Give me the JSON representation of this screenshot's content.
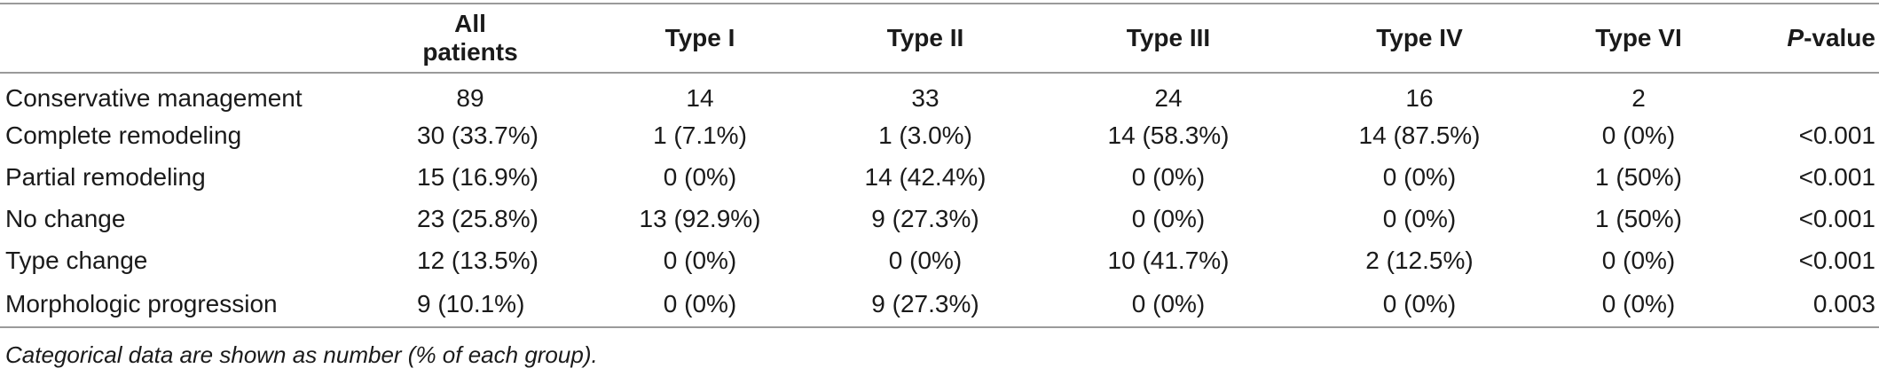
{
  "table": {
    "headers": {
      "label": "",
      "all": "All patients",
      "t1": "Type I",
      "t2": "Type II",
      "t3": "Type III",
      "t4": "Type IV",
      "t6": "Type VI",
      "p_letter": "P",
      "p_suffix": "-value"
    },
    "rows": [
      {
        "label": "Conservative management",
        "all": "89",
        "t1": "14",
        "t2": "33",
        "t3": "24",
        "t4": "16",
        "t6": "2",
        "p": ""
      },
      {
        "label": "Complete remodeling",
        "all": "30 (33.7%)",
        "t1": "1 (7.1%)",
        "t2": "1 (3.0%)",
        "t3": "14 (58.3%)",
        "t4": "14 (87.5%)",
        "t6": "0 (0%)",
        "p": "<0.001"
      },
      {
        "label": "Partial remodeling",
        "all": "15 (16.9%)",
        "t1": "0 (0%)",
        "t2": "14 (42.4%)",
        "t3": "0 (0%)",
        "t4": "0 (0%)",
        "t6": "1 (50%)",
        "p": "<0.001"
      },
      {
        "label": "No change",
        "all": "23 (25.8%)",
        "t1": "13 (92.9%)",
        "t2": "9 (27.3%)",
        "t3": "0 (0%)",
        "t4": "0 (0%)",
        "t6": "1 (50%)",
        "p": "<0.001"
      },
      {
        "label": "Type change",
        "all": "12 (13.5%)",
        "t1": "0 (0%)",
        "t2": "0 (0%)",
        "t3": "10 (41.7%)",
        "t4": "2 (12.5%)",
        "t6": "0 (0%)",
        "p": "<0.001"
      },
      {
        "label": "Morphologic progression",
        "all": "9 (10.1%)",
        "t1": "0 (0%)",
        "t2": "9 (27.3%)",
        "t3": "0 (0%)",
        "t4": "0 (0%)",
        "t6": "0 (0%)",
        "p": "0.003"
      }
    ]
  },
  "footnote": "Categorical data are shown as number (% of each group)."
}
